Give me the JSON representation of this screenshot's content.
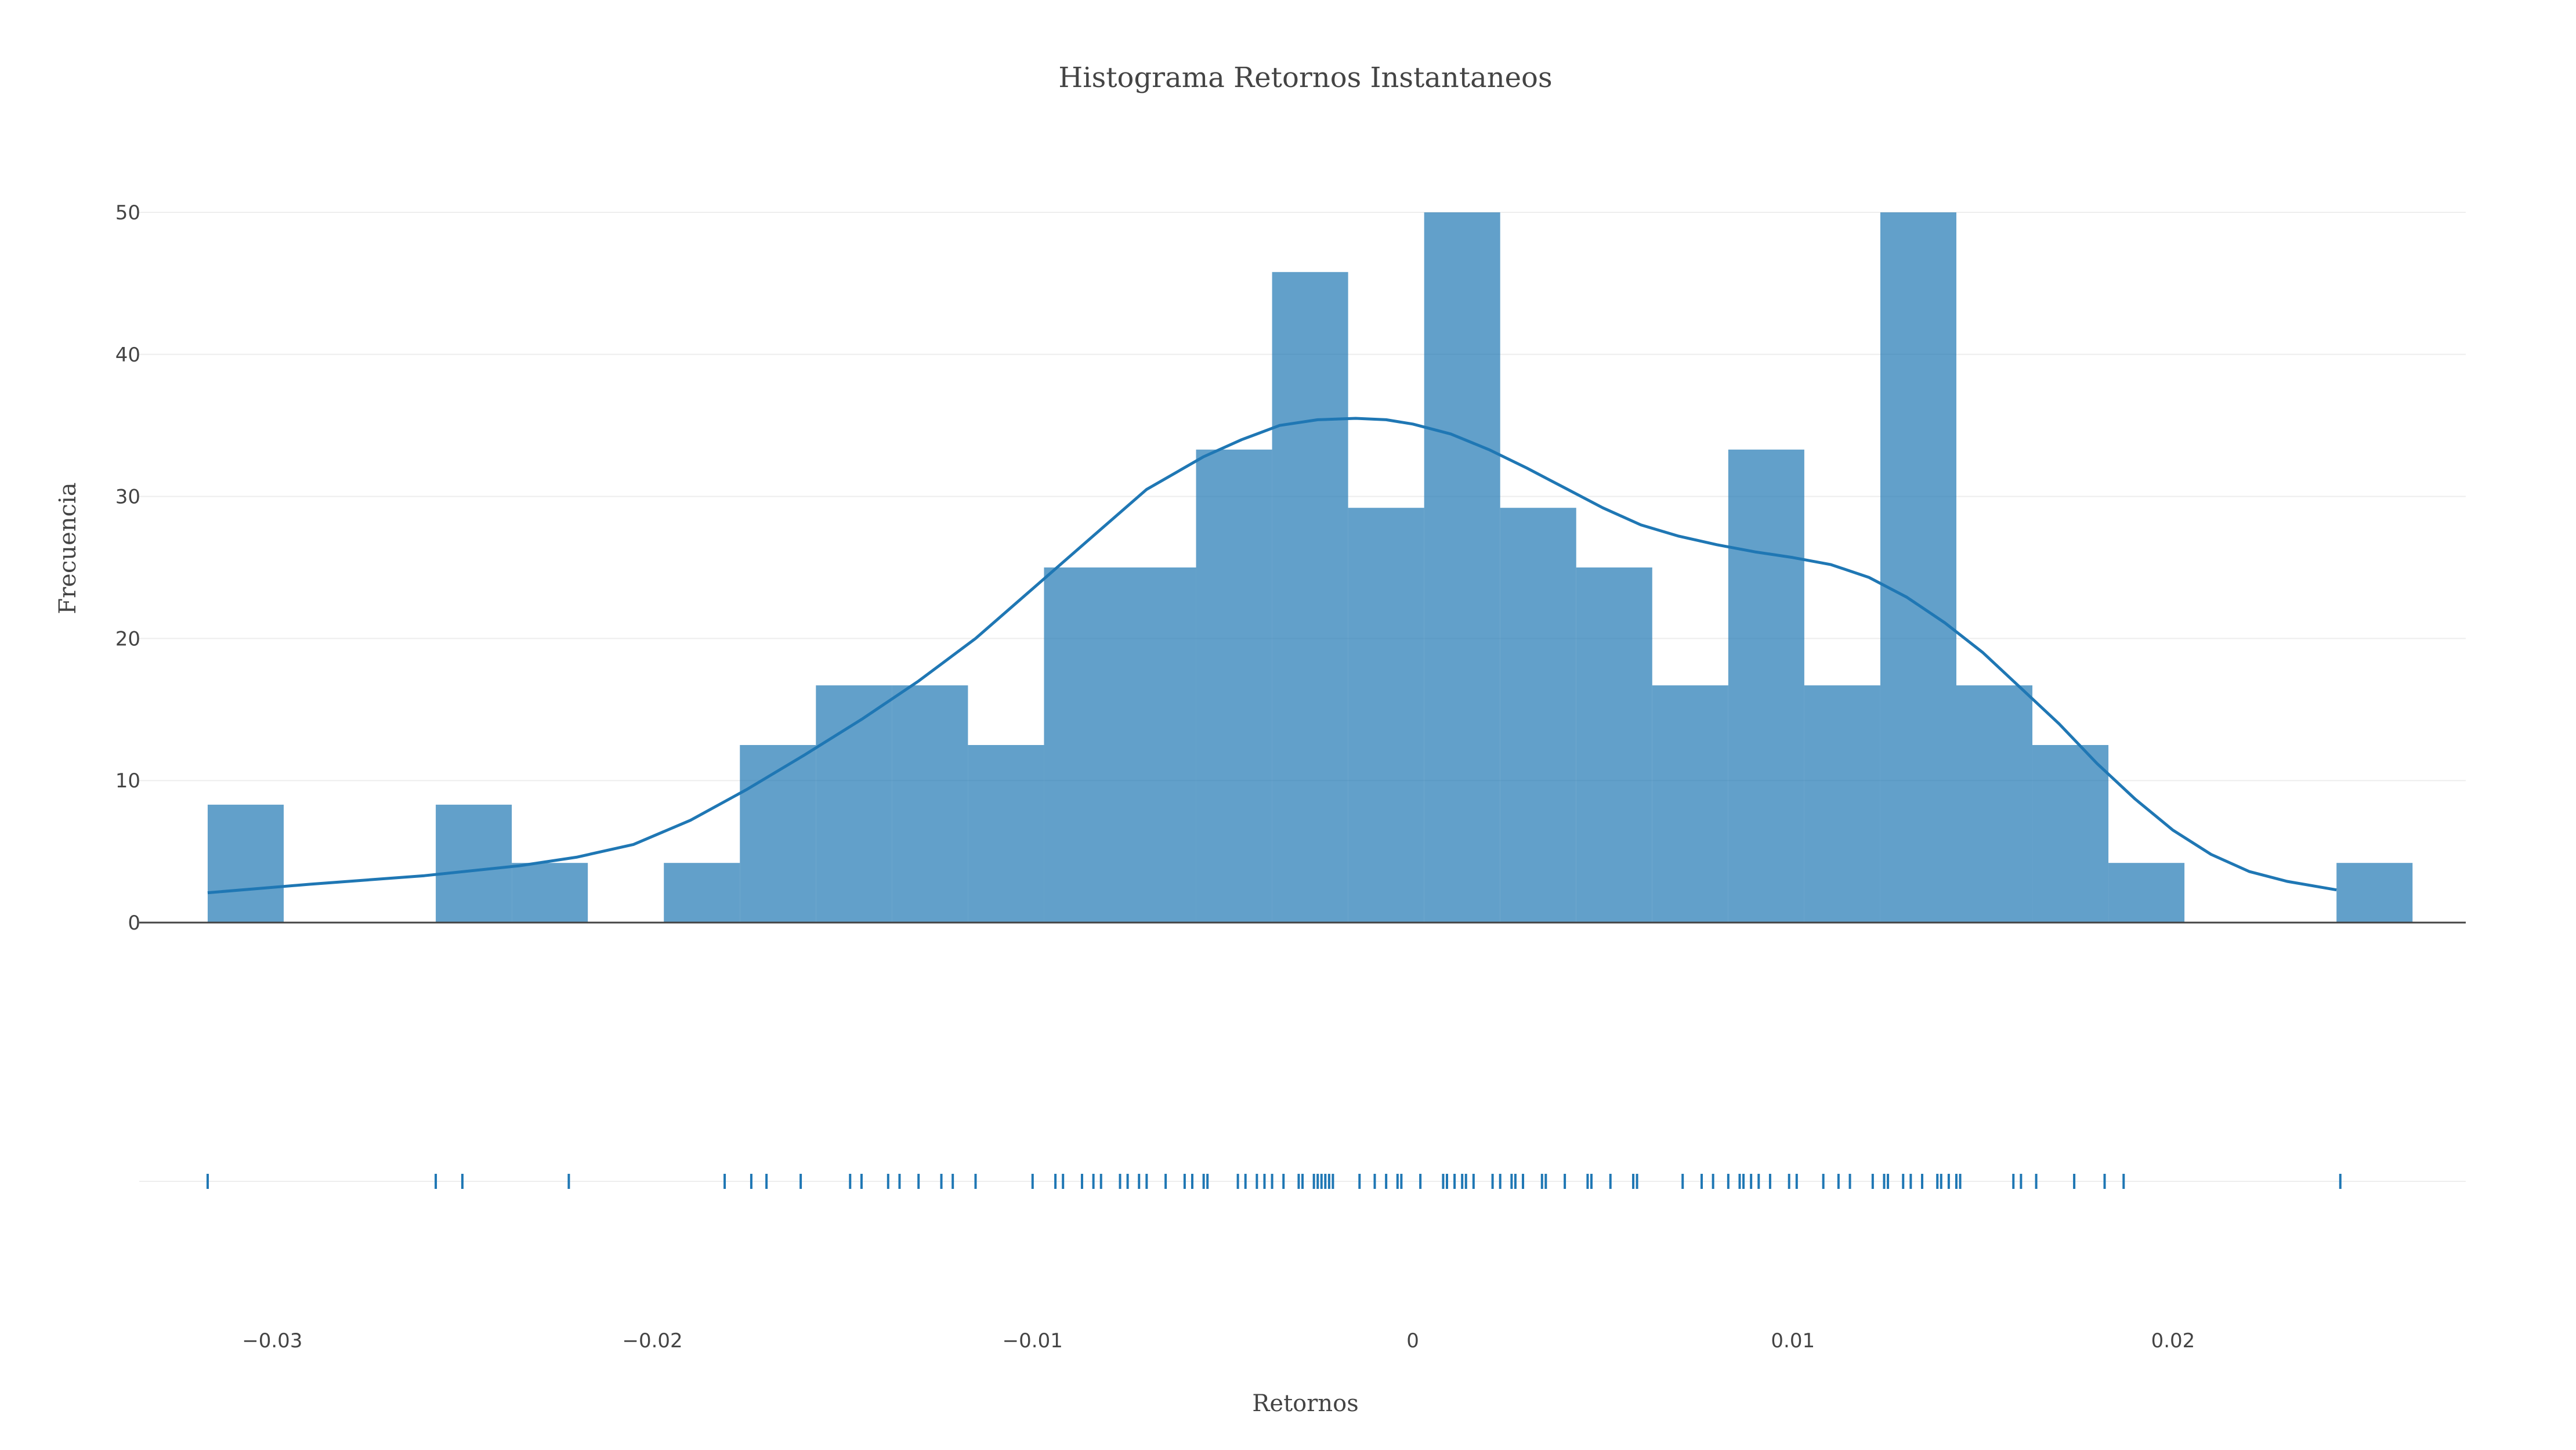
{
  "chart_data": {
    "type": "bar",
    "title": "Histograma Retornos Instantaneos",
    "xlabel": "Retornos",
    "ylabel": "Frecuencia",
    "xlim": [
      -0.0335,
      0.0277
    ],
    "ylim": [
      0,
      50
    ],
    "x_ticks": [
      {
        "value": -0.03,
        "label": "−0.03"
      },
      {
        "value": -0.02,
        "label": "−0.02"
      },
      {
        "value": -0.01,
        "label": "−0.01"
      },
      {
        "value": 0,
        "label": "0"
      },
      {
        "value": 0.01,
        "label": "0.01"
      },
      {
        "value": 0.02,
        "label": "0.02"
      }
    ],
    "y_ticks": [
      {
        "value": 0,
        "label": "0"
      },
      {
        "value": 10,
        "label": "10"
      },
      {
        "value": 20,
        "label": "20"
      },
      {
        "value": 30,
        "label": "30"
      },
      {
        "value": 40,
        "label": "40"
      },
      {
        "value": 50,
        "label": "50"
      }
    ],
    "grid": true,
    "colors": {
      "bars": "#1f77b4",
      "curve": "#1f77b4",
      "rug": "#1f77b4",
      "grid": "#eeeeee",
      "axis": "#444444"
    },
    "series": [
      {
        "type": "histogram",
        "bins": [
          {
            "x0": -0.0317,
            "x1": -0.0297,
            "value": 8.3
          },
          {
            "x0": -0.0297,
            "x1": -0.0277,
            "value": 0
          },
          {
            "x0": -0.0277,
            "x1": -0.0257,
            "value": 0
          },
          {
            "x0": -0.0257,
            "x1": -0.0237,
            "value": 8.3
          },
          {
            "x0": -0.0237,
            "x1": -0.0217,
            "value": 4.2
          },
          {
            "x0": -0.0217,
            "x1": -0.0197,
            "value": 0
          },
          {
            "x0": -0.0197,
            "x1": -0.0177,
            "value": 4.2
          },
          {
            "x0": -0.0177,
            "x1": -0.0157,
            "value": 12.5
          },
          {
            "x0": -0.0157,
            "x1": -0.0137,
            "value": 16.7
          },
          {
            "x0": -0.0137,
            "x1": -0.0117,
            "value": 16.7
          },
          {
            "x0": -0.0117,
            "x1": -0.0097,
            "value": 12.5
          },
          {
            "x0": -0.0097,
            "x1": -0.0077,
            "value": 25.0
          },
          {
            "x0": -0.0077,
            "x1": -0.0057,
            "value": 25.0
          },
          {
            "x0": -0.0057,
            "x1": -0.0037,
            "value": 33.3
          },
          {
            "x0": -0.0037,
            "x1": -0.0017,
            "value": 45.8
          },
          {
            "x0": -0.0017,
            "x1": 0.0003,
            "value": 29.2
          },
          {
            "x0": 0.0003,
            "x1": 0.0023,
            "value": 50.0
          },
          {
            "x0": 0.0023,
            "x1": 0.0043,
            "value": 29.2
          },
          {
            "x0": 0.0043,
            "x1": 0.0063,
            "value": 25.0
          },
          {
            "x0": 0.0063,
            "x1": 0.0083,
            "value": 16.7
          },
          {
            "x0": 0.0083,
            "x1": 0.0103,
            "value": 33.3
          },
          {
            "x0": 0.0103,
            "x1": 0.0123,
            "value": 16.7
          },
          {
            "x0": 0.0123,
            "x1": 0.0143,
            "value": 50.0
          },
          {
            "x0": 0.0143,
            "x1": 0.0163,
            "value": 16.7
          },
          {
            "x0": 0.0163,
            "x1": 0.0183,
            "value": 12.5
          },
          {
            "x0": 0.0183,
            "x1": 0.0203,
            "value": 4.2
          },
          {
            "x0": 0.0203,
            "x1": 0.0223,
            "value": 0
          },
          {
            "x0": 0.0223,
            "x1": 0.0243,
            "value": 0
          },
          {
            "x0": 0.0243,
            "x1": 0.0263,
            "value": 4.2
          }
        ]
      },
      {
        "type": "line",
        "x": [
          -0.0317,
          -0.029,
          -0.026,
          -0.0235,
          -0.022,
          -0.0205,
          -0.019,
          -0.0175,
          -0.016,
          -0.0145,
          -0.013,
          -0.0115,
          -0.01,
          -0.0085,
          -0.007,
          -0.0055,
          -0.0045,
          -0.0035,
          -0.0025,
          -0.0015,
          -0.0007,
          0.0,
          0.001,
          0.002,
          0.003,
          0.004,
          0.005,
          0.006,
          0.007,
          0.008,
          0.009,
          0.01,
          0.011,
          0.012,
          0.013,
          0.014,
          0.015,
          0.016,
          0.017,
          0.018,
          0.019,
          0.02,
          0.021,
          0.022,
          0.023,
          0.0243
        ],
        "y": [
          2.1,
          2.7,
          3.3,
          4.0,
          4.6,
          5.5,
          7.2,
          9.4,
          11.8,
          14.3,
          17.0,
          20.0,
          23.5,
          27.0,
          30.5,
          32.8,
          34.0,
          35.0,
          35.4,
          35.5,
          35.4,
          35.1,
          34.4,
          33.3,
          32.0,
          30.6,
          29.2,
          28.0,
          27.2,
          26.6,
          26.1,
          25.7,
          25.2,
          24.3,
          22.9,
          21.1,
          19.0,
          16.5,
          14.0,
          11.2,
          8.7,
          6.5,
          4.8,
          3.6,
          2.9,
          2.3
        ]
      },
      {
        "type": "rug",
        "x": [
          -0.0317,
          -0.0257,
          -0.025,
          -0.0222,
          -0.0181,
          -0.0174,
          -0.017,
          -0.0161,
          -0.0148,
          -0.0145,
          -0.0138,
          -0.0135,
          -0.013,
          -0.0124,
          -0.0121,
          -0.0115,
          -0.01,
          -0.0094,
          -0.0092,
          -0.0087,
          -0.0084,
          -0.0082,
          -0.0077,
          -0.0075,
          -0.0072,
          -0.007,
          -0.0065,
          -0.006,
          -0.0058,
          -0.0055,
          -0.0054,
          -0.0046,
          -0.0044,
          -0.0041,
          -0.0039,
          -0.0037,
          -0.0034,
          -0.003,
          -0.0029,
          -0.0026,
          -0.0025,
          -0.0024,
          -0.0023,
          -0.0022,
          -0.0021,
          -0.0014,
          -0.001,
          -0.0007,
          -0.0004,
          -0.0003,
          0.0002,
          0.0008,
          0.0009,
          0.0011,
          0.0013,
          0.0014,
          0.0016,
          0.0021,
          0.0023,
          0.0026,
          0.0027,
          0.0029,
          0.0034,
          0.0035,
          0.004,
          0.0046,
          0.0047,
          0.0052,
          0.0058,
          0.0059,
          0.0071,
          0.0076,
          0.0079,
          0.0083,
          0.0086,
          0.0087,
          0.0089,
          0.0091,
          0.0094,
          0.0099,
          0.0101,
          0.0108,
          0.0112,
          0.0115,
          0.0121,
          0.0124,
          0.0125,
          0.0129,
          0.0131,
          0.0134,
          0.0138,
          0.0139,
          0.0141,
          0.0143,
          0.0144,
          0.0158,
          0.016,
          0.0164,
          0.0174,
          0.0182,
          0.0187,
          0.0244
        ]
      }
    ]
  }
}
